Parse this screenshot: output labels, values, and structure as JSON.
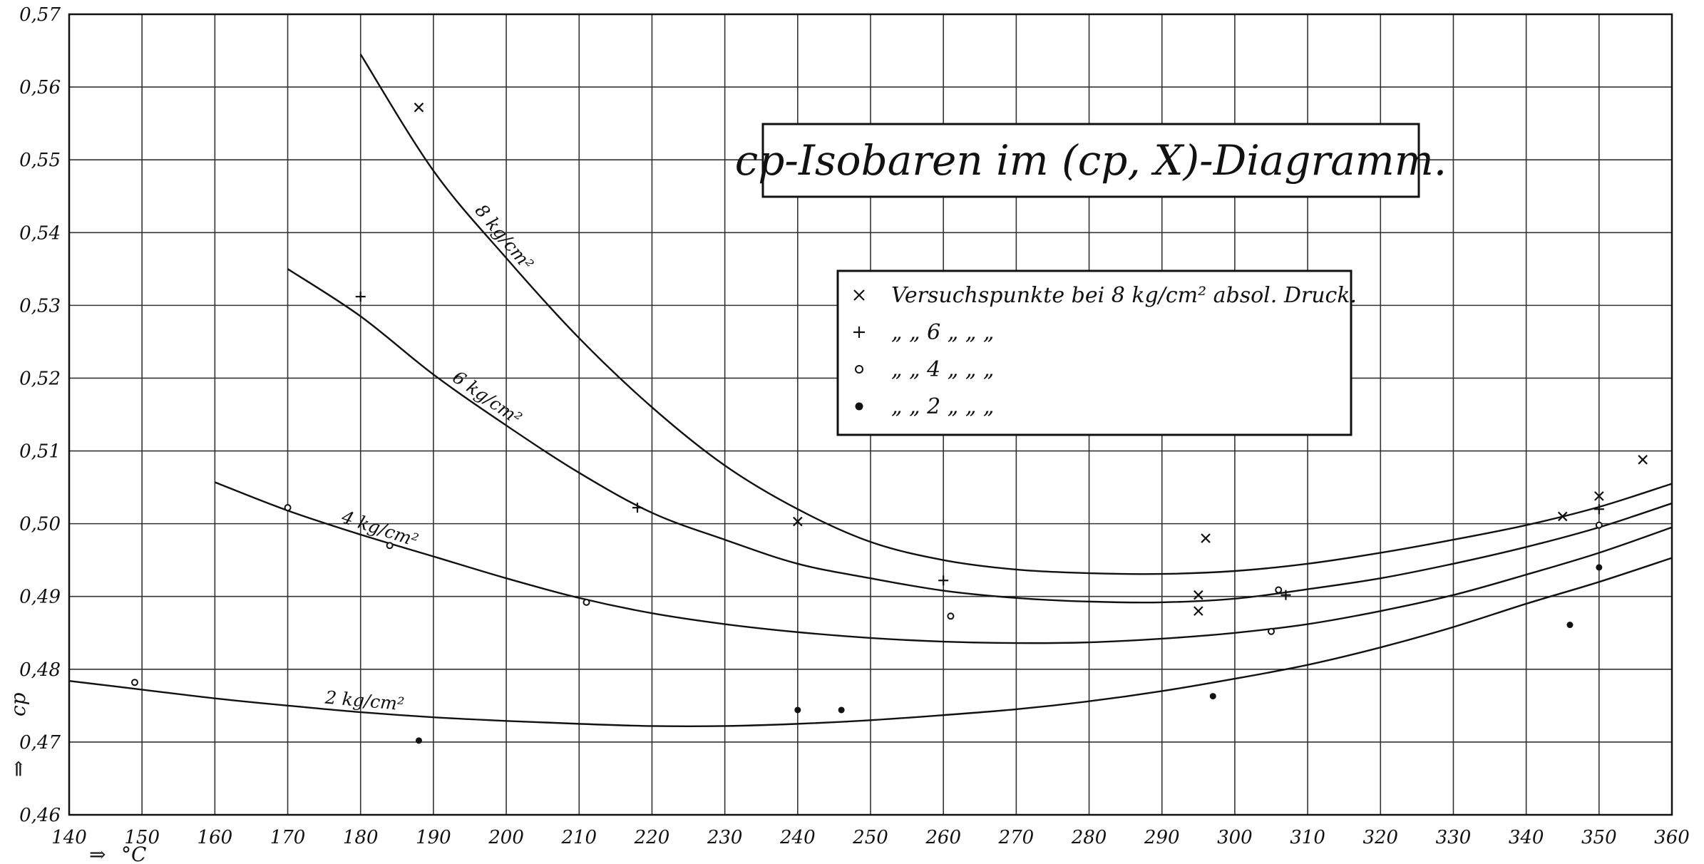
{
  "chart_data": {
    "type": "line",
    "title": "cp-Isobaren im (cp, X)-Diagramm.",
    "xlabel": "°C",
    "ylabel": "cp",
    "xlim": [
      140,
      360
    ],
    "ylim": [
      0.46,
      0.57
    ],
    "x_ticks": [
      140,
      150,
      160,
      170,
      180,
      190,
      200,
      210,
      220,
      230,
      240,
      250,
      260,
      270,
      280,
      290,
      300,
      310,
      320,
      330,
      340,
      350,
      360
    ],
    "x_tick_labels": [
      "140",
      "150",
      "160",
      "170",
      "180",
      "190",
      "200",
      "210",
      "220",
      "230",
      "240",
      "250",
      "260",
      "270",
      "280",
      "290",
      "300",
      "310",
      "320",
      "330",
      "340",
      "350",
      "360"
    ],
    "y_ticks": [
      0.46,
      0.47,
      0.48,
      0.49,
      0.5,
      0.51,
      0.52,
      0.53,
      0.54,
      0.55,
      0.56,
      0.57
    ],
    "y_tick_labels": [
      "0,46",
      "0,47",
      "0,48",
      "0,49",
      "0,50",
      "0,51",
      "0,52",
      "0,53",
      "0,54",
      "0,55",
      "0,56",
      "0,57"
    ],
    "grid": true,
    "legend_position": "upper-center",
    "series": [
      {
        "name": "8 kg/cm²",
        "label": "8 kg/cm²",
        "x": [
          180,
          190,
          200,
          210,
          220,
          230,
          240,
          250,
          260,
          270,
          280,
          290,
          300,
          310,
          320,
          330,
          340,
          350,
          360
        ],
        "y": [
          0.5645,
          0.5485,
          0.5365,
          0.5255,
          0.516,
          0.508,
          0.502,
          0.4975,
          0.495,
          0.4937,
          0.4932,
          0.4931,
          0.4935,
          0.4945,
          0.496,
          0.4978,
          0.4998,
          0.5023,
          0.5055
        ]
      },
      {
        "name": "6 kg/cm²",
        "label": "6 kg/cm²",
        "x": [
          170,
          180,
          190,
          200,
          210,
          220,
          230,
          240,
          250,
          260,
          270,
          280,
          290,
          300,
          310,
          320,
          330,
          340,
          350,
          360
        ],
        "y": [
          0.535,
          0.5285,
          0.5205,
          0.5135,
          0.507,
          0.5015,
          0.4978,
          0.4945,
          0.4925,
          0.4908,
          0.4898,
          0.4893,
          0.4892,
          0.4897,
          0.491,
          0.4925,
          0.4945,
          0.4968,
          0.4995,
          0.5028
        ]
      },
      {
        "name": "4 kg/cm²",
        "label": "4 kg/cm²",
        "x": [
          160,
          170,
          180,
          190,
          200,
          210,
          220,
          230,
          240,
          250,
          260,
          270,
          280,
          290,
          300,
          310,
          320,
          330,
          340,
          350,
          360
        ],
        "y": [
          0.5057,
          0.5018,
          0.4985,
          0.4955,
          0.4925,
          0.4898,
          0.4877,
          0.4862,
          0.4851,
          0.4843,
          0.4838,
          0.4836,
          0.4837,
          0.4842,
          0.485,
          0.4862,
          0.488,
          0.4902,
          0.493,
          0.496,
          0.4995
        ]
      },
      {
        "name": "2 kg/cm²",
        "label": "2 kg/cm²",
        "x": [
          140,
          150,
          160,
          170,
          180,
          190,
          200,
          210,
          220,
          230,
          240,
          250,
          260,
          270,
          280,
          290,
          300,
          310,
          320,
          330,
          340,
          350,
          360
        ],
        "y": [
          0.4784,
          0.4772,
          0.476,
          0.475,
          0.4741,
          0.4734,
          0.4729,
          0.4725,
          0.4722,
          0.4722,
          0.4725,
          0.473,
          0.4737,
          0.4745,
          0.4756,
          0.477,
          0.4787,
          0.4806,
          0.483,
          0.4858,
          0.489,
          0.492,
          0.4953
        ]
      }
    ],
    "points": [
      {
        "marker": "x",
        "series": "8",
        "x": 188,
        "y": 0.5572
      },
      {
        "marker": "x",
        "series": "8",
        "x": 240,
        "y": 0.5003
      },
      {
        "marker": "x",
        "series": "8",
        "x": 296,
        "y": 0.498
      },
      {
        "marker": "x",
        "series": "8",
        "x": 295,
        "y": 0.488
      },
      {
        "marker": "x",
        "series": "8",
        "x": 295,
        "y": 0.4902
      },
      {
        "marker": "x",
        "series": "8",
        "x": 345,
        "y": 0.501
      },
      {
        "marker": "x",
        "series": "8",
        "x": 350,
        "y": 0.5038
      },
      {
        "marker": "x",
        "series": "8",
        "x": 356,
        "y": 0.5088
      },
      {
        "marker": "+",
        "series": "6",
        "x": 180,
        "y": 0.5312
      },
      {
        "marker": "+",
        "series": "6",
        "x": 218,
        "y": 0.5022
      },
      {
        "marker": "+",
        "series": "6",
        "x": 260,
        "y": 0.4922
      },
      {
        "marker": "+",
        "series": "6",
        "x": 307,
        "y": 0.4902
      },
      {
        "marker": "+",
        "series": "6",
        "x": 350,
        "y": 0.502
      },
      {
        "marker": "o",
        "series": "4",
        "x": 149,
        "y": 0.4782
      },
      {
        "marker": "o",
        "series": "4",
        "x": 170,
        "y": 0.5022
      },
      {
        "marker": "o",
        "series": "4",
        "x": 184,
        "y": 0.497
      },
      {
        "marker": "o",
        "series": "4",
        "x": 211,
        "y": 0.4892
      },
      {
        "marker": "o",
        "series": "4",
        "x": 261,
        "y": 0.4873
      },
      {
        "marker": "o",
        "series": "4",
        "x": 305,
        "y": 0.4852
      },
      {
        "marker": "o",
        "series": "4",
        "x": 306,
        "y": 0.4909
      },
      {
        "marker": "o",
        "series": "4",
        "x": 350,
        "y": 0.4998
      },
      {
        "marker": "dot",
        "series": "2",
        "x": 188,
        "y": 0.4702
      },
      {
        "marker": "dot",
        "series": "2",
        "x": 240,
        "y": 0.4744
      },
      {
        "marker": "dot",
        "series": "2",
        "x": 246,
        "y": 0.4744
      },
      {
        "marker": "dot",
        "series": "2",
        "x": 297,
        "y": 0.4763
      },
      {
        "marker": "dot",
        "series": "2",
        "x": 346,
        "y": 0.4861
      },
      {
        "marker": "dot",
        "series": "2",
        "x": 350,
        "y": 0.494
      }
    ],
    "legend": {
      "rows": [
        {
          "marker": "x",
          "text": "Versuchspunkte bei 8 kg/cm² absol. Druck."
        },
        {
          "marker": "+",
          "text": "„       „ 6 „     „     „"
        },
        {
          "marker": "o",
          "text": "„       „ 4 „     „     „"
        },
        {
          "marker": "dot",
          "text": "„       „ 2 „     „     „"
        }
      ]
    },
    "colors": {
      "ink": "#111111",
      "grid": "#333333",
      "background": "#ffffff"
    }
  }
}
